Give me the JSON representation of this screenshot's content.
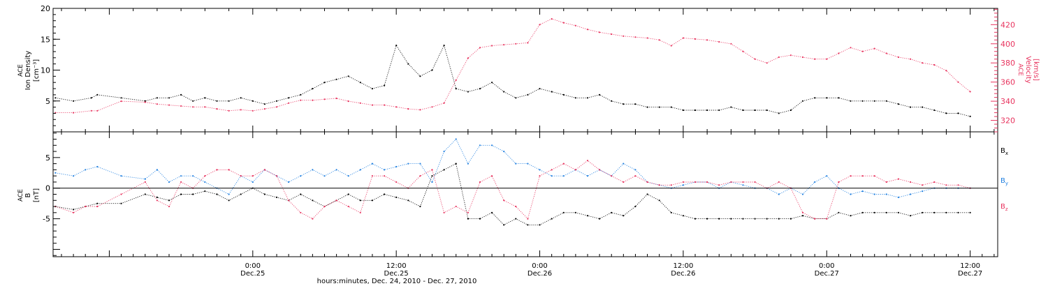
{
  "figure": {
    "xlabel": "hours:minutes, Dec. 24, 2010 - Dec. 27, 2010",
    "x_range_hours": [
      -16.7,
      62.3
    ],
    "ticks": [
      {
        "hours": 0,
        "line1": "0:00",
        "line2": "Dec.25"
      },
      {
        "hours": 12,
        "line1": "12:00",
        "line2": "Dec.25"
      },
      {
        "hours": 24,
        "line1": "0:00",
        "line2": "Dec.26"
      },
      {
        "hours": 36,
        "line1": "12:00",
        "line2": "Dec.26"
      },
      {
        "hours": 48,
        "line1": "0:00",
        "line2": "Dec.27"
      },
      {
        "hours": 60,
        "line1": "12:00",
        "line2": "Dec.27"
      }
    ]
  },
  "colors": {
    "black": "#000000",
    "red": "#e8335e",
    "blue": "#1f7fe0"
  },
  "chart_data": [
    {
      "type": "scatter",
      "ylabel_left": [
        "ACE",
        "Ion Density",
        "[cm⁻³]"
      ],
      "ylabel_right": [
        "ACE",
        "Velocity",
        "[km/s]"
      ],
      "ylim_left": [
        0,
        20
      ],
      "yticks_left": [
        5,
        10,
        15,
        20
      ],
      "ylim_right": [
        308,
        437
      ],
      "yticks_right": [
        320,
        340,
        360,
        380,
        400,
        420
      ],
      "series": [
        {
          "axis": "left",
          "color": "black",
          "x": [
            -16.5,
            -15,
            -13.5,
            -13,
            -11,
            -9,
            -8,
            -7,
            -6,
            -5,
            -4,
            -3,
            -2,
            -1,
            0,
            1,
            2,
            3,
            4,
            5,
            6,
            7,
            8,
            9,
            10,
            11,
            12,
            13,
            14,
            15,
            16,
            17,
            18,
            19,
            20,
            21,
            22,
            23,
            24,
            25,
            26,
            27,
            28,
            29,
            30,
            31,
            32,
            33,
            34,
            35,
            36,
            37,
            38,
            39,
            40,
            41,
            42,
            43,
            44,
            45,
            46,
            47,
            48,
            49,
            50,
            51,
            52,
            53,
            54,
            55,
            56,
            57,
            58,
            59,
            60
          ],
          "y": [
            5.5,
            5,
            5.5,
            6,
            5.5,
            5,
            5.5,
            5.5,
            6,
            5,
            5.5,
            5,
            5,
            5.5,
            5,
            4.5,
            5,
            5.5,
            6,
            7,
            8,
            8.5,
            9,
            8,
            7,
            7.5,
            14,
            11,
            9,
            10,
            14,
            7,
            6.5,
            7,
            8,
            6.5,
            5.5,
            6,
            7,
            6.5,
            6,
            5.5,
            5.5,
            6,
            5,
            4.5,
            4.5,
            4,
            4,
            4,
            3.5,
            3.5,
            3.5,
            3.5,
            4,
            3.5,
            3.5,
            3.5,
            3,
            3.5,
            5,
            5.5,
            5.5,
            5.5,
            5,
            5,
            5,
            5,
            4.5,
            4,
            4,
            3.5,
            3,
            3,
            2.5
          ]
        },
        {
          "axis": "right",
          "color": "red",
          "x": [
            -16.5,
            -15,
            -13.5,
            -13,
            -11,
            -9,
            -8,
            -7,
            -6,
            -5,
            -4,
            -3,
            -2,
            -1,
            0,
            1,
            2,
            3,
            4,
            5,
            6,
            7,
            8,
            9,
            10,
            11,
            12,
            13,
            14,
            15,
            16,
            17,
            18,
            19,
            20,
            21,
            22,
            23,
            24,
            25,
            26,
            27,
            28,
            29,
            30,
            31,
            32,
            33,
            34,
            35,
            36,
            37,
            38,
            39,
            40,
            41,
            42,
            43,
            44,
            45,
            46,
            47,
            48,
            49,
            50,
            51,
            52,
            53,
            54,
            55,
            56,
            57,
            58,
            59,
            60
          ],
          "y": [
            328,
            328,
            330,
            330,
            340,
            339,
            337,
            336,
            335,
            334,
            334,
            332,
            330,
            331,
            330,
            332,
            334,
            338,
            341,
            341,
            342,
            343,
            340,
            338,
            336,
            336,
            334,
            332,
            331,
            334,
            338,
            362,
            385,
            396,
            398,
            399,
            400,
            401,
            420,
            426,
            422,
            419,
            415,
            412,
            410,
            408,
            407,
            406,
            404,
            398,
            406,
            405,
            404,
            402,
            400,
            392,
            384,
            380,
            386,
            388,
            386,
            384,
            384,
            390,
            396,
            392,
            395,
            390,
            386,
            384,
            380,
            378,
            372,
            360,
            350
          ]
        }
      ]
    },
    {
      "type": "scatter",
      "ylabel": [
        "ACE",
        "B",
        "[nT]"
      ],
      "ylim": [
        -11.2,
        9.2
      ],
      "yticks": [
        -5,
        0,
        5
      ],
      "zero_line": true,
      "legend": {
        "placement": "right",
        "entries": [
          {
            "label": "B",
            "sub": "x",
            "color": "black"
          },
          {
            "label": "B",
            "sub": "y",
            "color": "blue"
          },
          {
            "label": "B",
            "sub": "z",
            "color": "red"
          }
        ]
      },
      "series": [
        {
          "name": "Bx",
          "color": "black",
          "x": [
            -16.5,
            -15,
            -14,
            -13,
            -11,
            -9,
            -8,
            -7,
            -6,
            -5,
            -4,
            -3,
            -2,
            -1,
            0,
            1,
            2,
            3,
            4,
            5,
            6,
            7,
            8,
            9,
            10,
            11,
            12,
            13,
            14,
            15,
            16,
            17,
            18,
            19,
            20,
            21,
            22,
            23,
            24,
            25,
            26,
            27,
            28,
            29,
            30,
            31,
            32,
            33,
            34,
            35,
            36,
            37,
            38,
            39,
            40,
            41,
            42,
            43,
            44,
            45,
            46,
            47,
            48,
            49,
            50,
            51,
            52,
            53,
            54,
            55,
            56,
            57,
            58,
            59,
            60
          ],
          "y": [
            -3,
            -3.5,
            -3,
            -2.5,
            -2.5,
            -1,
            -1.5,
            -2,
            -1,
            -1,
            -0.5,
            -1,
            -2,
            -1,
            0,
            -1,
            -1.5,
            -2,
            -1,
            -2,
            -3,
            -2,
            -1,
            -2,
            -2,
            -1,
            -1.5,
            -2,
            -3,
            2,
            3,
            4,
            -5,
            -5,
            -4,
            -6,
            -5,
            -6,
            -6,
            -5,
            -4,
            -4,
            -4.5,
            -5,
            -4,
            -4.5,
            -3,
            -1,
            -2,
            -4,
            -4.5,
            -5,
            -5,
            -5,
            -5,
            -5,
            -5,
            -5,
            -5,
            -5,
            -4.5,
            -5,
            -5,
            -4,
            -4.5,
            -4,
            -4,
            -4,
            -4,
            -4.5,
            -4,
            -4,
            -4,
            -4,
            -4
          ]
        },
        {
          "name": "By",
          "color": "blue",
          "x": [
            -16.5,
            -15,
            -14,
            -13,
            -11,
            -9,
            -8,
            -7,
            -6,
            -5,
            -4,
            -3,
            -2,
            -1,
            0,
            1,
            2,
            3,
            4,
            5,
            6,
            7,
            8,
            9,
            10,
            11,
            12,
            13,
            14,
            15,
            16,
            17,
            18,
            19,
            20,
            21,
            22,
            23,
            24,
            25,
            26,
            27,
            28,
            29,
            30,
            31,
            32,
            33,
            34,
            35,
            36,
            37,
            38,
            39,
            40,
            41,
            42,
            43,
            44,
            45,
            46,
            47,
            48,
            49,
            50,
            51,
            52,
            53,
            54,
            55,
            56,
            57,
            58,
            59,
            60
          ],
          "y": [
            2.5,
            2,
            3,
            3.5,
            2,
            1.5,
            3,
            1,
            2,
            2,
            1,
            0,
            -1,
            2,
            1,
            3,
            2,
            1,
            2,
            3,
            2,
            3,
            2,
            3,
            4,
            3,
            3.5,
            4,
            4,
            1,
            6,
            8,
            4,
            7,
            7,
            6,
            4,
            4,
            3,
            2,
            2,
            3,
            2,
            3,
            2,
            4,
            3,
            1,
            0.5,
            0,
            0.5,
            1,
            1,
            0,
            1,
            0.5,
            0,
            0,
            -1,
            0,
            -1,
            1,
            2,
            0,
            -1,
            -0.5,
            -1,
            -1,
            -1.5,
            -1,
            -0.5,
            0,
            0,
            0,
            0
          ]
        },
        {
          "name": "Bz",
          "color": "red",
          "x": [
            -16.5,
            -15,
            -14,
            -13,
            -11,
            -9,
            -8,
            -7,
            -6,
            -5,
            -4,
            -3,
            -2,
            -1,
            0,
            1,
            2,
            3,
            4,
            5,
            6,
            7,
            8,
            9,
            10,
            11,
            12,
            13,
            14,
            15,
            16,
            17,
            18,
            19,
            20,
            21,
            22,
            23,
            24,
            25,
            26,
            27,
            28,
            29,
            30,
            31,
            32,
            33,
            34,
            35,
            36,
            37,
            38,
            39,
            40,
            41,
            42,
            43,
            44,
            45,
            46,
            47,
            48,
            49,
            50,
            51,
            52,
            53,
            54,
            55,
            56,
            57,
            58,
            59,
            60
          ],
          "y": [
            -3,
            -4,
            -3,
            -3,
            -1,
            1,
            -2,
            -3,
            1,
            0,
            2,
            3,
            3,
            2,
            2,
            3,
            2,
            -2,
            -4,
            -5,
            -3,
            -2,
            -3,
            -4,
            2,
            2,
            1,
            0,
            2,
            3,
            -4,
            -3,
            -4,
            1,
            2,
            -2,
            -3,
            -5,
            2,
            3,
            4,
            3,
            4.5,
            3,
            2,
            1,
            2,
            1,
            0.5,
            0.5,
            1,
            1,
            1,
            0.5,
            1,
            1,
            1,
            0,
            1,
            0,
            -4,
            -5,
            -5,
            1,
            2,
            2,
            2,
            1,
            1.5,
            1,
            0.5,
            1,
            0.5,
            0.5,
            0
          ]
        }
      ]
    }
  ]
}
